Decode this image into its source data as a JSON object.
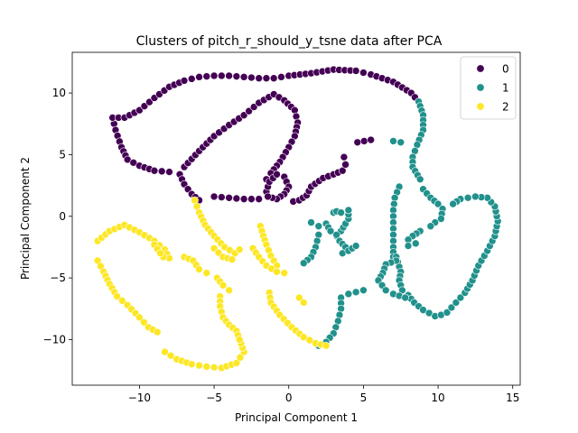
{
  "chart_data": {
    "type": "scatter",
    "title": "Clusters of pitch_r_should_y_tsne data after PCA",
    "xlabel": "Principal Component 1",
    "ylabel": "Principal Component 2",
    "xlim": [
      -14.5,
      15.5
    ],
    "ylim": [
      -13.7,
      13.3
    ],
    "xticks": [
      -10,
      -5,
      0,
      5,
      10,
      15
    ],
    "yticks": [
      -10,
      -5,
      0,
      5,
      10
    ],
    "grid": false,
    "legend": {
      "placement": "top-right",
      "entries": [
        "0",
        "1",
        "2"
      ]
    },
    "series": [
      {
        "name": "0",
        "color": "#440154",
        "paths": [
          [
            [
              -11.8,
              8.0
            ],
            [
              -11.6,
              7.0
            ],
            [
              -11.2,
              5.6
            ],
            [
              -10.8,
              4.6
            ],
            [
              -10.0,
              4.1
            ],
            [
              -9.0,
              3.7
            ],
            [
              -8.0,
              3.6
            ]
          ],
          [
            [
              -11.8,
              8.0
            ],
            [
              -11.0,
              8.0
            ],
            [
              -10.0,
              8.6
            ],
            [
              -9.0,
              9.6
            ],
            [
              -8.0,
              10.5
            ],
            [
              -7.0,
              11.0
            ],
            [
              -6.0,
              11.3
            ],
            [
              -5.0,
              11.4
            ],
            [
              -4.0,
              11.4
            ],
            [
              -3.0,
              11.3
            ],
            [
              -2.0,
              11.2
            ],
            [
              -1.0,
              11.2
            ],
            [
              0.0,
              11.4
            ],
            [
              1.5,
              11.6
            ],
            [
              3.0,
              11.9
            ],
            [
              4.5,
              11.8
            ],
            [
              5.5,
              11.5
            ],
            [
              7.0,
              10.9
            ],
            [
              8.2,
              10.0
            ],
            [
              8.7,
              9.3
            ]
          ],
          [
            [
              -7.0,
              4.0
            ],
            [
              -6.0,
              5.3
            ],
            [
              -5.0,
              6.5
            ],
            [
              -4.0,
              7.4
            ],
            [
              -3.0,
              8.2
            ],
            [
              -2.0,
              9.2
            ],
            [
              -1.0,
              9.9
            ],
            [
              -0.3,
              9.4
            ],
            [
              0.4,
              8.6
            ],
            [
              0.6,
              7.6
            ],
            [
              0.4,
              6.5
            ],
            [
              0.0,
              5.6
            ],
            [
              -0.6,
              4.4
            ],
            [
              -1.2,
              3.5
            ],
            [
              -1.5,
              3.0
            ]
          ],
          [
            [
              -7.3,
              3.4
            ],
            [
              -7.0,
              2.6
            ],
            [
              -6.5,
              1.8
            ],
            [
              -6.0,
              1.3
            ]
          ],
          [
            [
              -5.0,
              1.6
            ],
            [
              -4.0,
              1.5
            ],
            [
              -3.0,
              1.4
            ],
            [
              -2.0,
              1.4
            ]
          ],
          [
            [
              -1.5,
              2.0
            ],
            [
              -1.3,
              2.8
            ],
            [
              -0.8,
              3.4
            ],
            [
              -0.3,
              3.2
            ],
            [
              0.0,
              2.4
            ],
            [
              -0.3,
              1.8
            ],
            [
              -0.8,
              1.4
            ],
            [
              -1.4,
              1.6
            ]
          ],
          [
            [
              0.3,
              1.2
            ],
            [
              0.7,
              1.3
            ],
            [
              1.2,
              1.7
            ],
            [
              1.5,
              2.4
            ]
          ],
          [
            [
              1.5,
              2.4
            ],
            [
              2.3,
              3.1
            ],
            [
              3.0,
              3.4
            ],
            [
              3.6,
              3.7
            ],
            [
              3.8,
              4.2
            ],
            [
              3.7,
              4.8
            ]
          ],
          [
            [
              4.6,
              6.0
            ],
            [
              5.5,
              6.2
            ]
          ]
        ]
      },
      {
        "name": "1",
        "color": "#21918c",
        "paths": [
          [
            [
              8.7,
              9.3
            ],
            [
              9.0,
              8.2
            ],
            [
              9.0,
              7.0
            ],
            [
              8.6,
              5.8
            ],
            [
              8.3,
              4.8
            ],
            [
              8.3,
              4.0
            ],
            [
              8.8,
              3.0
            ]
          ],
          [
            [
              7.0,
              6.1
            ],
            [
              7.5,
              6.0
            ]
          ],
          [
            [
              7.4,
              2.4
            ],
            [
              7.1,
              1.5
            ],
            [
              7.0,
              0.5
            ],
            [
              7.0,
              -0.5
            ],
            [
              7.0,
              -1.5
            ],
            [
              7.0,
              -2.5
            ],
            [
              7.0,
              -3.3
            ]
          ],
          [
            [
              9.0,
              2.2
            ],
            [
              9.5,
              1.5
            ],
            [
              10.0,
              1.0
            ],
            [
              10.3,
              0.6
            ],
            [
              10.2,
              -0.2
            ],
            [
              9.8,
              -0.5
            ],
            [
              9.5,
              -0.8
            ]
          ],
          [
            [
              8.8,
              -1.2
            ],
            [
              8.3,
              -1.6
            ],
            [
              8.0,
              -1.9
            ],
            [
              8.0,
              -2.4
            ],
            [
              8.5,
              -2.2
            ]
          ],
          [
            [
              7.2,
              -3.3
            ],
            [
              7.5,
              -4.5
            ],
            [
              7.4,
              -5.2
            ],
            [
              7.6,
              -6.0
            ],
            [
              8.0,
              -6.4
            ],
            [
              8.4,
              -7.0
            ],
            [
              9.0,
              -7.6
            ],
            [
              9.8,
              -8.1
            ],
            [
              10.2,
              -8.0
            ]
          ],
          [
            [
              10.6,
              -7.8
            ],
            [
              11.2,
              -7.0
            ],
            [
              11.8,
              -6.2
            ],
            [
              12.3,
              -5.2
            ],
            [
              12.7,
              -4.0
            ],
            [
              13.3,
              -2.8
            ],
            [
              13.8,
              -1.6
            ],
            [
              14.0,
              -0.4
            ],
            [
              13.8,
              0.8
            ],
            [
              13.3,
              1.5
            ],
            [
              12.5,
              1.6
            ],
            [
              11.5,
              1.4
            ],
            [
              11.0,
              1.0
            ]
          ],
          [
            [
              7.2,
              -3.6
            ],
            [
              6.5,
              -3.9
            ],
            [
              6.3,
              -4.6
            ],
            [
              6.0,
              -5.2
            ],
            [
              6.5,
              -6.0
            ],
            [
              7.0,
              -6.3
            ],
            [
              7.8,
              -6.6
            ]
          ],
          [
            [
              5.0,
              -6.0
            ],
            [
              4.0,
              -6.3
            ],
            [
              3.5,
              -6.6
            ],
            [
              3.5,
              -7.5
            ],
            [
              3.3,
              -8.5
            ],
            [
              3.0,
              -9.5
            ],
            [
              2.5,
              -10.2
            ],
            [
              2.0,
              -10.5
            ]
          ],
          [
            [
              1.5,
              -0.5
            ],
            [
              2.0,
              -0.8
            ],
            [
              2.5,
              -0.6
            ],
            [
              2.8,
              -1.2
            ],
            [
              3.2,
              -1.6
            ],
            [
              3.5,
              -1.2
            ],
            [
              3.8,
              -0.6
            ],
            [
              4.0,
              -0.2
            ],
            [
              4.0,
              0.5
            ]
          ],
          [
            [
              2.0,
              -1.5
            ],
            [
              1.8,
              -2.5
            ],
            [
              1.5,
              -3.3
            ],
            [
              1.0,
              -3.8
            ]
          ],
          [
            [
              3.0,
              0.3
            ],
            [
              3.2,
              0.4
            ],
            [
              3.5,
              0.3
            ]
          ],
          [
            [
              3.2,
              -1.5
            ],
            [
              3.4,
              -2.0
            ],
            [
              3.8,
              -2.5
            ],
            [
              3.6,
              -3.0
            ]
          ],
          [
            [
              4.0,
              -2.8
            ],
            [
              4.5,
              -2.4
            ]
          ]
        ]
      },
      {
        "name": "2",
        "color": "#fde725",
        "paths": [
          [
            [
              -6.3,
              1.3
            ],
            [
              -6.0,
              0.3
            ],
            [
              -5.6,
              -0.7
            ],
            [
              -5.0,
              -1.6
            ],
            [
              -4.3,
              -2.5
            ],
            [
              -3.6,
              -3.0
            ],
            [
              -3.3,
              -2.7
            ]
          ],
          [
            [
              -5.0,
              -2.6
            ],
            [
              -4.4,
              -3.3
            ],
            [
              -3.8,
              -3.5
            ]
          ],
          [
            [
              -1.9,
              -0.8
            ],
            [
              -1.7,
              -1.6
            ],
            [
              -1.5,
              -2.3
            ],
            [
              -1.2,
              -3.2
            ],
            [
              -0.8,
              -4.0
            ]
          ],
          [
            [
              -2.4,
              -2.6
            ],
            [
              -2.0,
              -3.3
            ],
            [
              -1.5,
              -4.0
            ],
            [
              -0.8,
              -4.5
            ],
            [
              -0.3,
              -4.6
            ]
          ],
          [
            [
              -12.8,
              -2.0
            ],
            [
              -12.0,
              -1.2
            ],
            [
              -11.0,
              -0.7
            ],
            [
              -10.0,
              -1.3
            ],
            [
              -9.0,
              -2.0
            ],
            [
              -8.3,
              -2.7
            ],
            [
              -8.0,
              -3.4
            ],
            [
              -8.4,
              -3.3
            ]
          ],
          [
            [
              -9.0,
              -2.3
            ],
            [
              -8.6,
              -3.0
            ]
          ],
          [
            [
              -12.8,
              -3.6
            ],
            [
              -12.4,
              -4.5
            ],
            [
              -12.0,
              -5.5
            ],
            [
              -11.5,
              -6.5
            ],
            [
              -10.8,
              -7.2
            ],
            [
              -10.0,
              -8.2
            ],
            [
              -9.4,
              -9.0
            ],
            [
              -8.8,
              -9.4
            ]
          ],
          [
            [
              -8.3,
              -11.0
            ],
            [
              -7.5,
              -11.6
            ],
            [
              -6.5,
              -12.0
            ],
            [
              -5.5,
              -12.2
            ],
            [
              -4.5,
              -12.3
            ],
            [
              -3.5,
              -11.9
            ],
            [
              -3.0,
              -11.0
            ],
            [
              -3.2,
              -10.3
            ]
          ],
          [
            [
              -7.0,
              -3.3
            ],
            [
              -6.4,
              -3.6
            ],
            [
              -6.0,
              -4.3
            ],
            [
              -5.5,
              -4.6
            ]
          ],
          [
            [
              -4.8,
              -5.0
            ],
            [
              -4.4,
              -5.6
            ],
            [
              -4.0,
              -6.0
            ]
          ],
          [
            [
              -4.6,
              -6.5
            ],
            [
              -4.6,
              -7.3
            ],
            [
              -4.4,
              -8.2
            ],
            [
              -4.0,
              -8.8
            ],
            [
              -3.5,
              -9.3
            ],
            [
              -3.3,
              -10.0
            ]
          ],
          [
            [
              -1.3,
              -6.2
            ],
            [
              -1.2,
              -7.0
            ],
            [
              -0.6,
              -8.0
            ],
            [
              0.2,
              -9.0
            ],
            [
              1.0,
              -9.8
            ],
            [
              1.8,
              -10.3
            ],
            [
              2.5,
              -10.5
            ]
          ],
          [
            [
              0.7,
              -6.6
            ],
            [
              1.0,
              -7.0
            ]
          ]
        ]
      }
    ]
  }
}
